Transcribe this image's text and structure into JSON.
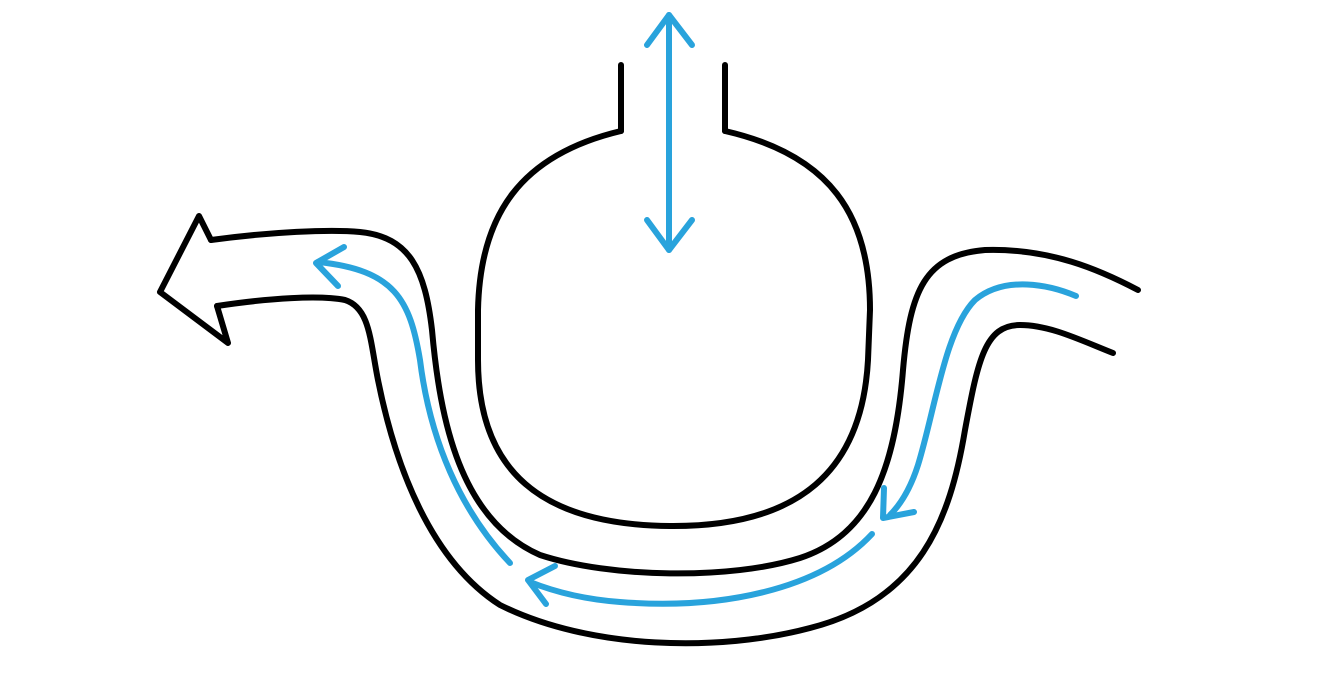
{
  "colors": {
    "background": "#ffffff",
    "outline": "#000000",
    "flow_arrows": "#29a3dc"
  }
}
